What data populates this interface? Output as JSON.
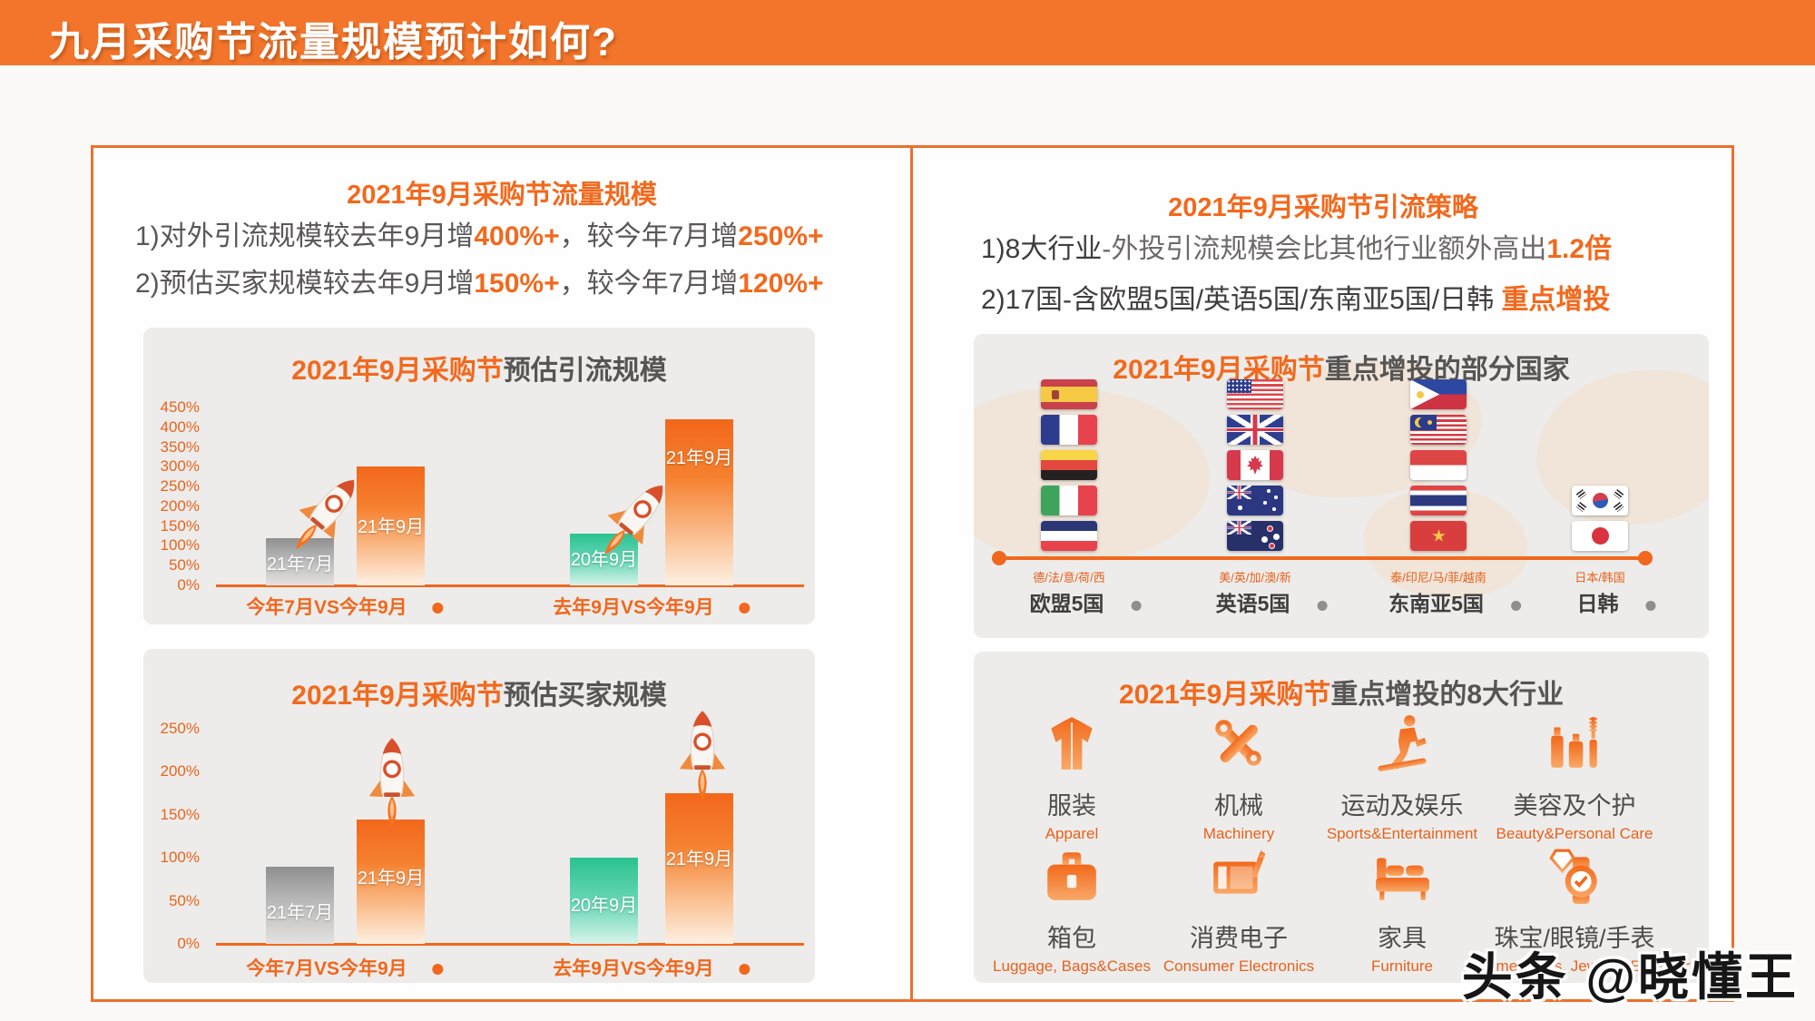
{
  "page": {
    "title": "九月采购节流量规模预计如何?",
    "watermark": "头条 @晓懂王"
  },
  "colors": {
    "primary_orange": "#f2752b",
    "accent_orange": "#f2691d",
    "dark_text": "#595757",
    "panel_bg": "#edecea",
    "bar_gray": "#8f8f8f",
    "bar_orange": "#f3671b",
    "bar_green": "#2bc291"
  },
  "left_panel": {
    "header": "2021年9月采购节流量规模",
    "points": [
      {
        "prefix": "1)对外引流规模较去年9月增",
        "hl1": "400%+",
        "mid": "，较今年7月增",
        "hl2": "250%+"
      },
      {
        "prefix": "2)预估买家规模较去年9月增",
        "hl1": "150%+",
        "mid": "，较今年7月增",
        "hl2": "120%+"
      }
    ]
  },
  "chart_data": [
    {
      "type": "bar",
      "title_highlight": "2021年9月采购节",
      "title_rest": "预估引流规模",
      "categories": [
        "今年7月VS今年9月",
        "去年9月VS今年9月"
      ],
      "series": [
        {
          "group": "今年7月VS今年9月",
          "bars": [
            {
              "label": "21年7月",
              "value": 120,
              "color": "gray"
            },
            {
              "label": "21年9月",
              "value": 300,
              "color": "orange"
            }
          ]
        },
        {
          "group": "去年9月VS今年9月",
          "bars": [
            {
              "label": "20年9月",
              "value": 130,
              "color": "green"
            },
            {
              "label": "21年9月",
              "value": 420,
              "color": "orange"
            }
          ]
        }
      ],
      "ylim": [
        0,
        450
      ],
      "yticks": [
        "450%",
        "400%",
        "350%",
        "300%",
        "250%",
        "200%",
        "150%",
        "100%",
        "50%",
        "0%"
      ],
      "grid": false,
      "legend": "none",
      "unit": "%"
    },
    {
      "type": "bar",
      "title_highlight": "2021年9月采购节",
      "title_rest": "预估买家规模",
      "categories": [
        "今年7月VS今年9月",
        "去年9月VS今年9月"
      ],
      "series": [
        {
          "group": "今年7月VS今年9月",
          "bars": [
            {
              "label": "21年7月",
              "value": 90,
              "color": "gray"
            },
            {
              "label": "21年9月",
              "value": 145,
              "color": "orange"
            }
          ]
        },
        {
          "group": "去年9月VS今年9月",
          "bars": [
            {
              "label": "20年9月",
              "value": 100,
              "color": "green"
            },
            {
              "label": "21年9月",
              "value": 175,
              "color": "orange"
            }
          ]
        }
      ],
      "ylim": [
        0,
        250
      ],
      "yticks": [
        "250%",
        "200%",
        "150%",
        "100%",
        "50%",
        "0%"
      ],
      "grid": false,
      "legend": "none",
      "unit": "%"
    }
  ],
  "right_panel": {
    "header": "2021年9月采购节引流策略",
    "point1": {
      "black": "1)8大行业",
      "gray": "-外投引流规模会比其他行业额外高出",
      "orange": "1.2倍"
    },
    "point2": {
      "black": "2)17国-含欧盟5国/英语5国/东南亚5国/日韩 ",
      "orange": "重点增投"
    },
    "countries_box": {
      "title_highlight": "2021年9月采购节",
      "title_rest": "重点增投的部分国家",
      "groups": [
        {
          "flags": [
            "spain",
            "france",
            "germany",
            "italy",
            "netherlands"
          ],
          "sub": "德/法/意/荷/西",
          "label": "欧盟5国"
        },
        {
          "flags": [
            "usa",
            "uk",
            "canada",
            "australia",
            "new-zealand"
          ],
          "sub": "美/英/加/澳/新",
          "label": "英语5国"
        },
        {
          "flags": [
            "philippines",
            "malaysia",
            "indonesia",
            "thailand",
            "vietnam"
          ],
          "sub": "泰/印尼/马/菲/越南",
          "label": "东南亚5国"
        },
        {
          "flags": [
            "south-korea",
            "japan"
          ],
          "sub": "日本/韩国",
          "label": "日韩"
        }
      ]
    },
    "industries_box": {
      "title_highlight": "2021年9月采购节",
      "title_rest": "重点增投的8大行业",
      "items": [
        {
          "icon": "apparel",
          "zh": "服装",
          "en": "Apparel"
        },
        {
          "icon": "machinery",
          "zh": "机械",
          "en": "Machinery"
        },
        {
          "icon": "sports",
          "zh": "运动及娱乐",
          "en": "Sports&Entertainment"
        },
        {
          "icon": "beauty",
          "zh": "美容及个护",
          "en": "Beauty&Personal Care"
        },
        {
          "icon": "luggage",
          "zh": "箱包",
          "en": "Luggage, Bags&Cases"
        },
        {
          "icon": "electronics",
          "zh": "消费电子",
          "en": "Consumer Electronics"
        },
        {
          "icon": "furniture",
          "zh": "家具",
          "en": "Furniture"
        },
        {
          "icon": "jewelry",
          "zh": "珠宝/眼镜/手表",
          "en": "Timepieces, Jewelry, Eyewear"
        }
      ]
    }
  }
}
